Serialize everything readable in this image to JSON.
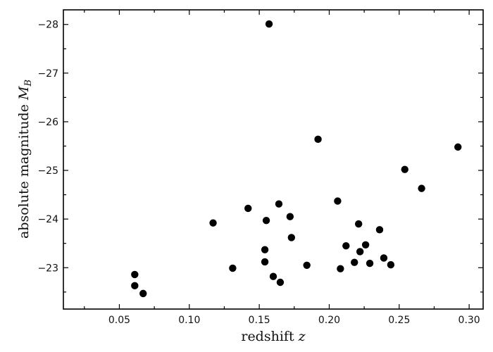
{
  "chart_data": {
    "type": "scatter",
    "xlabel": "redshift z",
    "ylabel": "absolute magnitude M_B",
    "xlim": [
      0.01,
      0.31
    ],
    "ylim": [
      -22.15,
      -28.3
    ],
    "y_inverted": true,
    "grid": false,
    "x_ticks": [
      0.05,
      0.1,
      0.15,
      0.2,
      0.25,
      0.3
    ],
    "x_tick_labels": [
      "0.05",
      "0.10",
      "0.15",
      "0.20",
      "0.25",
      "0.30"
    ],
    "y_ticks": [
      -23,
      -24,
      -25,
      -26,
      -27,
      -28
    ],
    "y_tick_labels": [
      "−23",
      "−24",
      "−25",
      "−26",
      "−27",
      "−28"
    ],
    "marker_color": "#000000",
    "points": [
      {
        "x": 0.061,
        "y": -22.86
      },
      {
        "x": 0.061,
        "y": -22.63
      },
      {
        "x": 0.067,
        "y": -22.47
      },
      {
        "x": 0.117,
        "y": -23.92
      },
      {
        "x": 0.131,
        "y": -22.99
      },
      {
        "x": 0.142,
        "y": -24.22
      },
      {
        "x": 0.154,
        "y": -23.37
      },
      {
        "x": 0.154,
        "y": -23.12
      },
      {
        "x": 0.155,
        "y": -23.97
      },
      {
        "x": 0.157,
        "y": -28.01
      },
      {
        "x": 0.16,
        "y": -22.82
      },
      {
        "x": 0.164,
        "y": -24.31
      },
      {
        "x": 0.165,
        "y": -22.7
      },
      {
        "x": 0.172,
        "y": -24.05
      },
      {
        "x": 0.173,
        "y": -23.62
      },
      {
        "x": 0.184,
        "y": -23.05
      },
      {
        "x": 0.192,
        "y": -25.64
      },
      {
        "x": 0.206,
        "y": -24.37
      },
      {
        "x": 0.208,
        "y": -22.98
      },
      {
        "x": 0.212,
        "y": -23.45
      },
      {
        "x": 0.218,
        "y": -23.11
      },
      {
        "x": 0.221,
        "y": -23.9
      },
      {
        "x": 0.222,
        "y": -23.33
      },
      {
        "x": 0.226,
        "y": -23.47
      },
      {
        "x": 0.229,
        "y": -23.09
      },
      {
        "x": 0.236,
        "y": -23.78
      },
      {
        "x": 0.239,
        "y": -23.2
      },
      {
        "x": 0.244,
        "y": -23.06
      },
      {
        "x": 0.254,
        "y": -25.02
      },
      {
        "x": 0.266,
        "y": -24.63
      },
      {
        "x": 0.292,
        "y": -25.48
      }
    ]
  }
}
